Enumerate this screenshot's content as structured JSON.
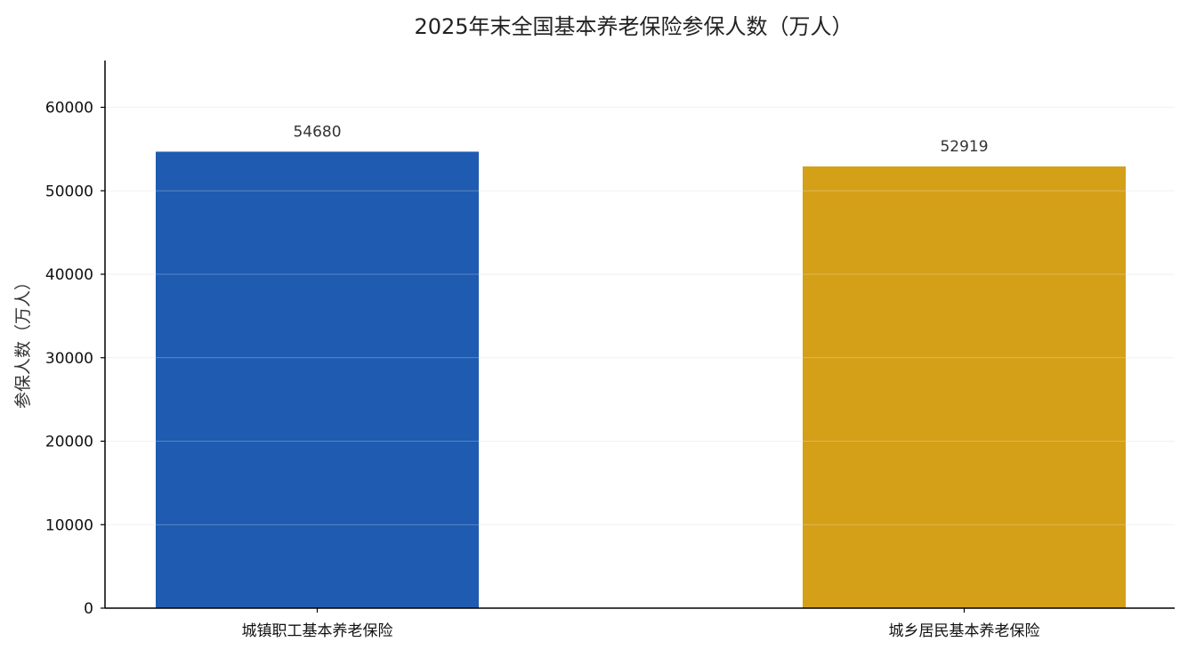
{
  "chart_data": {
    "type": "bar",
    "title": "2025年末全国基本养老保险参保人数（万人）",
    "xlabel": "",
    "ylabel": "参保人数（万人）",
    "categories": [
      "城镇职工基本养老保险",
      "城乡居民基本养老保险"
    ],
    "values": [
      54680,
      52919
    ],
    "data_labels": [
      "54680",
      "52919"
    ],
    "colors": [
      "#1f5bb0",
      "#d4a018"
    ],
    "ylim": [
      0,
      65600
    ],
    "yticks": [
      0,
      10000,
      20000,
      30000,
      40000,
      50000,
      60000
    ],
    "ytick_labels": [
      "0",
      "10000",
      "20000",
      "30000",
      "40000",
      "50000",
      "60000"
    ],
    "grid": true,
    "legend": "none"
  }
}
